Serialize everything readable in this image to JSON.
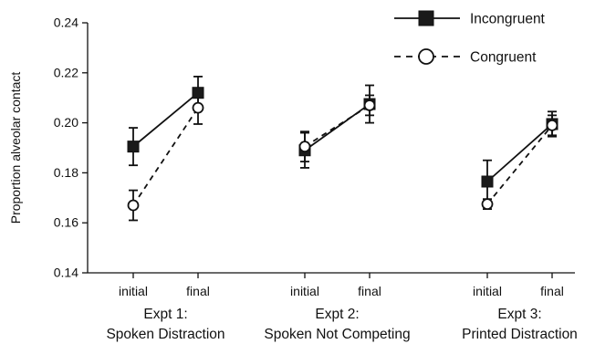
{
  "chart_data": {
    "type": "line",
    "ylabel": "Proportion alveolar contact",
    "ylim": [
      0.14,
      0.24
    ],
    "yticks": [
      0.14,
      0.16,
      0.18,
      0.2,
      0.22,
      0.24
    ],
    "ytick_labels": [
      "0.14",
      "0.16",
      "0.18",
      "0.20",
      "0.22",
      "0.24"
    ],
    "legend": {
      "placement": "top-right",
      "entries": [
        {
          "name": "Incongruent",
          "marker": "filled-square",
          "line": "solid"
        },
        {
          "name": "Congruent",
          "marker": "open-circle",
          "line": "dashed"
        }
      ]
    },
    "groups": [
      {
        "label_line1": "Expt 1:",
        "label_line2": "Spoken Distraction",
        "categories": [
          "initial",
          "final"
        ],
        "series": [
          {
            "name": "Incongruent",
            "values": [
              0.1905,
              0.212
            ],
            "errors": [
              0.0075,
              0.0065
            ]
          },
          {
            "name": "Congruent",
            "values": [
              0.167,
              0.206
            ],
            "errors": [
              0.006,
              0.0065
            ]
          }
        ]
      },
      {
        "label_line1": "Expt 2:",
        "label_line2": "Spoken Not Competing",
        "categories": [
          "initial",
          "final"
        ],
        "series": [
          {
            "name": "Incongruent",
            "values": [
              0.189,
              0.2075
            ],
            "errors": [
              0.007,
              0.0075
            ]
          },
          {
            "name": "Congruent",
            "values": [
              0.1905,
              0.207
            ],
            "errors": [
              0.006,
              0.004
            ]
          }
        ]
      },
      {
        "label_line1": "Expt 3:",
        "label_line2": "Printed Distraction",
        "categories": [
          "initial",
          "final"
        ],
        "series": [
          {
            "name": "Incongruent",
            "values": [
              0.1765,
              0.1995
            ],
            "errors": [
              0.0085,
              0.005
            ]
          },
          {
            "name": "Congruent",
            "values": [
              0.1675,
              0.199
            ],
            "errors": [
              0.002,
              0.004
            ]
          }
        ]
      }
    ]
  }
}
